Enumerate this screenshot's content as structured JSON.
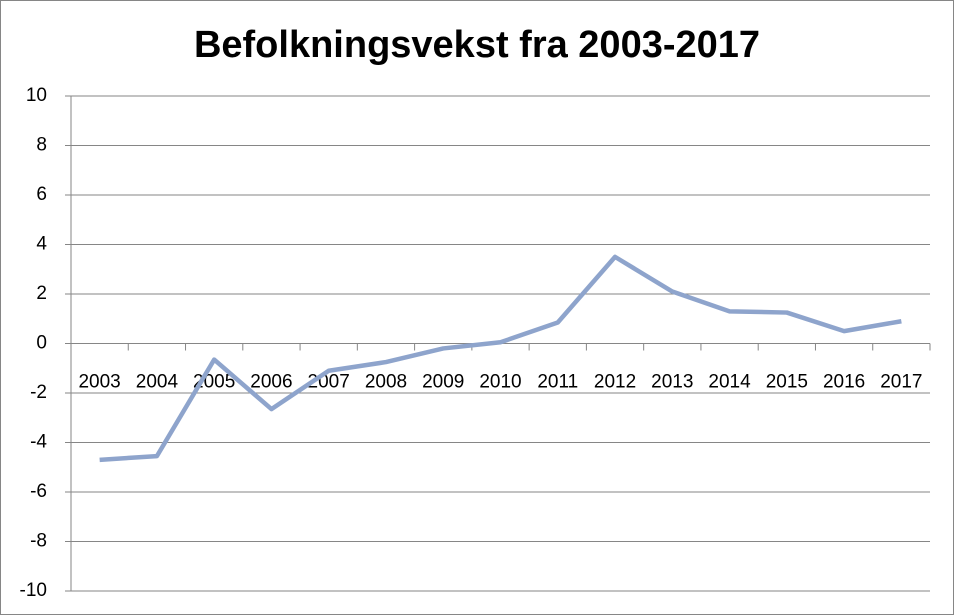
{
  "chart_data": {
    "type": "line",
    "title": "Befolkningsvekst fra 2003-2017",
    "categories": [
      "2003",
      "2004",
      "2005",
      "2006",
      "2007",
      "2008",
      "2009",
      "2010",
      "2011",
      "2012",
      "2013",
      "2014",
      "2015",
      "2016",
      "2017"
    ],
    "series": [
      {
        "name": "Befolkningsvekst",
        "color": "#8ea4cc",
        "values": [
          -4.7,
          -4.55,
          -0.65,
          -2.65,
          -1.1,
          -0.75,
          -0.2,
          0.05,
          0.85,
          3.5,
          2.1,
          1.3,
          1.25,
          0.5,
          0.9
        ]
      }
    ],
    "ylim": [
      -10,
      10
    ],
    "yticks": [
      -10,
      -8,
      -6,
      -4,
      -2,
      0,
      2,
      4,
      6,
      8,
      10
    ],
    "grid": true
  }
}
